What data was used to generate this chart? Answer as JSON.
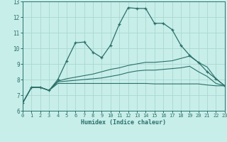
{
  "title": "",
  "xlabel": "Humidex (Indice chaleur)",
  "bg_color": "#c8eeea",
  "grid_color": "#a8d8d0",
  "line_color": "#2a7068",
  "xlim": [
    0,
    23
  ],
  "ylim": [
    6,
    13
  ],
  "xticks": [
    0,
    1,
    2,
    3,
    4,
    5,
    6,
    7,
    8,
    9,
    10,
    11,
    12,
    13,
    14,
    15,
    16,
    17,
    18,
    19,
    20,
    21,
    22,
    23
  ],
  "yticks": [
    6,
    7,
    8,
    9,
    10,
    11,
    12,
    13
  ],
  "lines": [
    {
      "x": [
        0,
        1,
        2,
        3,
        4,
        5,
        6,
        7,
        8,
        9,
        10,
        11,
        12,
        13,
        14,
        15,
        16,
        17,
        18,
        19,
        20,
        21,
        22,
        23
      ],
      "y": [
        6.5,
        7.5,
        7.5,
        7.3,
        8.0,
        9.2,
        10.35,
        10.4,
        9.75,
        9.4,
        10.2,
        11.55,
        12.6,
        12.55,
        12.55,
        11.6,
        11.6,
        11.2,
        10.2,
        9.55,
        9.1,
        8.5,
        8.05,
        7.6
      ],
      "marker": true
    },
    {
      "x": [
        0,
        1,
        2,
        3,
        4,
        5,
        6,
        7,
        8,
        9,
        10,
        11,
        12,
        13,
        14,
        15,
        16,
        17,
        18,
        19,
        20,
        21,
        22,
        23
      ],
      "y": [
        6.5,
        7.5,
        7.5,
        7.3,
        7.9,
        8.05,
        8.15,
        8.25,
        8.35,
        8.5,
        8.65,
        8.75,
        8.9,
        9.0,
        9.1,
        9.1,
        9.15,
        9.2,
        9.35,
        9.5,
        9.1,
        8.8,
        8.05,
        7.6
      ],
      "marker": false
    },
    {
      "x": [
        0,
        1,
        2,
        3,
        4,
        5,
        6,
        7,
        8,
        9,
        10,
        11,
        12,
        13,
        14,
        15,
        16,
        17,
        18,
        19,
        20,
        21,
        22,
        23
      ],
      "y": [
        6.5,
        7.5,
        7.5,
        7.3,
        7.85,
        7.9,
        7.95,
        8.0,
        8.05,
        8.1,
        8.2,
        8.3,
        8.45,
        8.55,
        8.6,
        8.6,
        8.65,
        8.7,
        8.75,
        8.85,
        8.5,
        8.2,
        7.75,
        7.6
      ],
      "marker": false
    },
    {
      "x": [
        0,
        1,
        2,
        3,
        4,
        5,
        6,
        7,
        8,
        9,
        10,
        11,
        12,
        13,
        14,
        15,
        16,
        17,
        18,
        19,
        20,
        21,
        22,
        23
      ],
      "y": [
        6.5,
        7.5,
        7.5,
        7.3,
        7.75,
        7.75,
        7.75,
        7.75,
        7.75,
        7.75,
        7.75,
        7.75,
        7.75,
        7.75,
        7.75,
        7.72,
        7.72,
        7.72,
        7.72,
        7.72,
        7.72,
        7.65,
        7.6,
        7.6
      ],
      "marker": false
    }
  ]
}
